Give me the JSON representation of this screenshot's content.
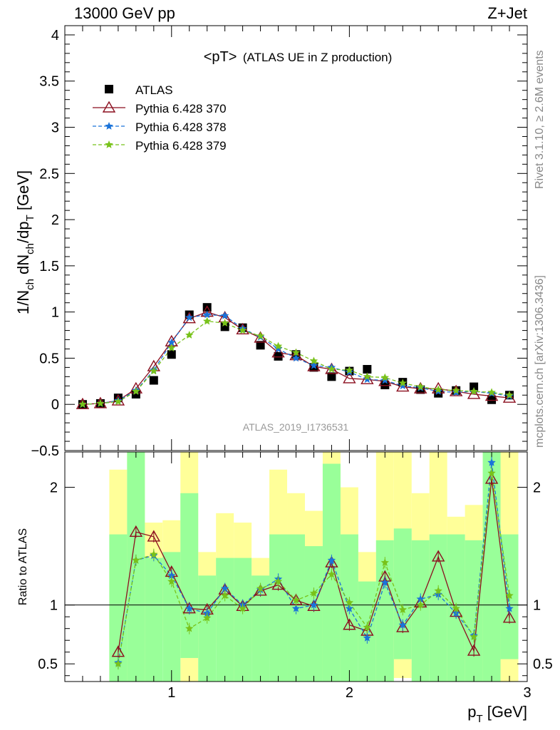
{
  "header": {
    "left": "13000 GeV pp",
    "right": "Z+Jet"
  },
  "side_text": {
    "rivet": "Rivet 3.1.10, ≥ 2.6M events",
    "site": "mcplots.cern.ch [arXiv:1306.3436]"
  },
  "chart_data": [
    {
      "type": "scatter",
      "title": "<pT>",
      "subtitle": "(ATLAS UE in Z production)",
      "watermark": "ATLAS_2019_I1736531",
      "ylabel": "1/N_ch dN_ch/dp_T [GeV]",
      "ylabel_parts": {
        "a": "1/N",
        "b": "ch",
        "c": " dN",
        "d": "ch",
        "e": "/dp",
        "f": "T",
        "g": " [GeV]"
      },
      "xlim": [
        0.4,
        3.0
      ],
      "ylim": [
        -0.5,
        4.1
      ],
      "yticks": [
        -0.5,
        0,
        0.5,
        1,
        1.5,
        2,
        2.5,
        3,
        3.5,
        4
      ],
      "ytick_labels": [
        "−0.5",
        "0",
        "0.5",
        "1",
        "1.5",
        "2",
        "2.5",
        "3",
        "3.5",
        "4"
      ],
      "legend_position": "top-left",
      "x": [
        0.5,
        0.6,
        0.7,
        0.8,
        0.9,
        1.0,
        1.1,
        1.2,
        1.3,
        1.4,
        1.5,
        1.6,
        1.7,
        1.8,
        1.9,
        2.0,
        2.1,
        2.2,
        2.3,
        2.4,
        2.5,
        2.6,
        2.7,
        2.8,
        2.9
      ],
      "series": [
        {
          "name": "ATLAS",
          "color": "#000000",
          "marker": "square",
          "style": "none",
          "values": [
            0.0,
            0.01,
            0.07,
            0.11,
            0.26,
            0.54,
            0.97,
            1.05,
            0.84,
            0.83,
            0.64,
            0.52,
            0.54,
            0.4,
            0.3,
            0.36,
            0.38,
            0.21,
            0.24,
            0.16,
            0.12,
            0.15,
            0.19,
            0.05,
            0.1
          ]
        },
        {
          "name": "Pythia 6.428 370",
          "color": "#8b0f1f",
          "marker": "triangle",
          "style": "solid",
          "values": [
            0.0,
            0.01,
            0.04,
            0.17,
            0.41,
            0.68,
            0.93,
            1.0,
            0.94,
            0.81,
            0.72,
            0.56,
            0.53,
            0.41,
            0.38,
            0.28,
            0.27,
            0.25,
            0.19,
            0.17,
            0.17,
            0.14,
            0.11,
            0.09,
            0.07
          ]
        },
        {
          "name": "Pythia 6.428 378",
          "color": "#1a73d9",
          "marker": "star",
          "style": "dashed",
          "values": [
            0.0,
            0.01,
            0.04,
            0.15,
            0.37,
            0.67,
            0.94,
            0.97,
            0.96,
            0.82,
            0.73,
            0.6,
            0.5,
            0.42,
            0.4,
            0.35,
            0.27,
            0.26,
            0.2,
            0.18,
            0.14,
            0.13,
            0.14,
            0.12,
            0.09
          ]
        },
        {
          "name": "Pythia 6.428 379",
          "color": "#78c21a",
          "marker": "star",
          "style": "dashed",
          "values": [
            0.0,
            0.01,
            0.03,
            0.14,
            0.36,
            0.61,
            0.75,
            0.9,
            0.88,
            0.8,
            0.74,
            0.63,
            0.56,
            0.47,
            0.38,
            0.37,
            0.3,
            0.29,
            0.23,
            0.19,
            0.16,
            0.15,
            0.14,
            0.13,
            0.1
          ]
        }
      ]
    },
    {
      "type": "line",
      "ylabel": "Ratio to ATLAS",
      "xlabel_parts": {
        "a": "p",
        "b": "T",
        "c": " [GeV]"
      },
      "xlim": [
        0.4,
        3.0
      ],
      "ylim": [
        0.35,
        2.3
      ],
      "xticks": [
        1,
        2,
        3
      ],
      "xtick_labels": [
        "1",
        "2",
        "3"
      ],
      "yticks": [
        0.5,
        1,
        2
      ],
      "ytick_labels": [
        "0.5",
        "1",
        "2"
      ],
      "reference_line": 1,
      "x": [
        0.5,
        0.6,
        0.7,
        0.8,
        0.9,
        1.0,
        1.1,
        1.2,
        1.3,
        1.4,
        1.5,
        1.6,
        1.7,
        1.8,
        1.9,
        2.0,
        2.1,
        2.2,
        2.3,
        2.4,
        2.5,
        2.6,
        2.7,
        2.8,
        2.9
      ],
      "bands": {
        "yellow_color": "#ffff99",
        "green_color": "#99ff99",
        "x_edges": [
          0.45,
          0.55,
          0.65,
          0.75,
          0.85,
          0.95,
          1.05,
          1.15,
          1.25,
          1.35,
          1.45,
          1.55,
          1.65,
          1.75,
          1.85,
          1.95,
          2.05,
          2.15,
          2.25,
          2.35,
          2.45,
          2.55,
          2.65,
          2.75,
          2.85,
          2.95
        ],
        "yellow_lo": [
          null,
          null,
          0.35,
          0.35,
          0.72,
          0.7,
          0.35,
          0.62,
          0.68,
          0.35,
          0.6,
          0.55,
          0.35,
          0.38,
          0.42,
          0.6,
          0.35,
          0.35,
          0.38,
          0.4,
          0.4,
          0.35,
          0.35,
          0.35,
          0.35
        ],
        "yellow_hi": [
          null,
          null,
          2.15,
          2.3,
          1.7,
          1.72,
          2.3,
          1.45,
          1.78,
          1.7,
          1.4,
          2.15,
          1.95,
          1.8,
          2.3,
          2.0,
          1.45,
          2.3,
          2.3,
          1.95,
          2.3,
          1.75,
          1.85,
          2.3,
          2.3
        ],
        "green_lo": [
          null,
          null,
          0.35,
          0.35,
          0.35,
          0.35,
          0.55,
          0.35,
          0.35,
          0.35,
          0.35,
          0.35,
          0.35,
          0.35,
          0.35,
          0.35,
          0.35,
          0.35,
          0.54,
          0.35,
          0.35,
          0.35,
          0.35,
          0.35,
          0.54
        ],
        "green_hi": [
          null,
          null,
          1.6,
          2.3,
          1.4,
          1.45,
          1.95,
          1.25,
          1.4,
          1.4,
          1.25,
          1.6,
          1.6,
          1.5,
          2.2,
          1.6,
          1.2,
          1.55,
          1.65,
          1.55,
          1.6,
          1.6,
          1.55,
          2.3,
          1.6
        ]
      },
      "series": [
        {
          "name": "Pythia 6.428 370",
          "color": "#8b0f1f",
          "marker": "triangle",
          "style": "solid",
          "values": [
            null,
            null,
            0.6,
            1.62,
            1.58,
            1.28,
            0.97,
            0.96,
            1.13,
            0.99,
            1.12,
            1.17,
            1.04,
            0.99,
            1.36,
            0.83,
            0.78,
            1.24,
            0.81,
            1.02,
            1.41,
            0.94,
            0.61,
            2.07,
            0.89
          ]
        },
        {
          "name": "Pythia 6.428 378",
          "color": "#1a73d9",
          "marker": "star",
          "style": "dashed",
          "values": [
            null,
            null,
            0.51,
            1.38,
            1.42,
            1.25,
            0.97,
            0.93,
            1.14,
            1.0,
            1.13,
            1.22,
            0.97,
            1.0,
            1.38,
            0.97,
            0.72,
            1.19,
            0.83,
            1.05,
            1.09,
            0.93,
            0.74,
            2.21,
            0.97
          ]
        },
        {
          "name": "Pythia 6.428 379",
          "color": "#78c21a",
          "marker": "star",
          "style": "dashed",
          "values": [
            null,
            null,
            0.5,
            1.38,
            1.43,
            1.2,
            0.8,
            0.89,
            1.08,
            0.97,
            1.14,
            1.2,
            1.04,
            1.1,
            1.26,
            1.02,
            0.81,
            1.36,
            0.96,
            1.0,
            1.12,
            0.97,
            0.73,
            2.12,
            1.08
          ]
        }
      ]
    }
  ]
}
